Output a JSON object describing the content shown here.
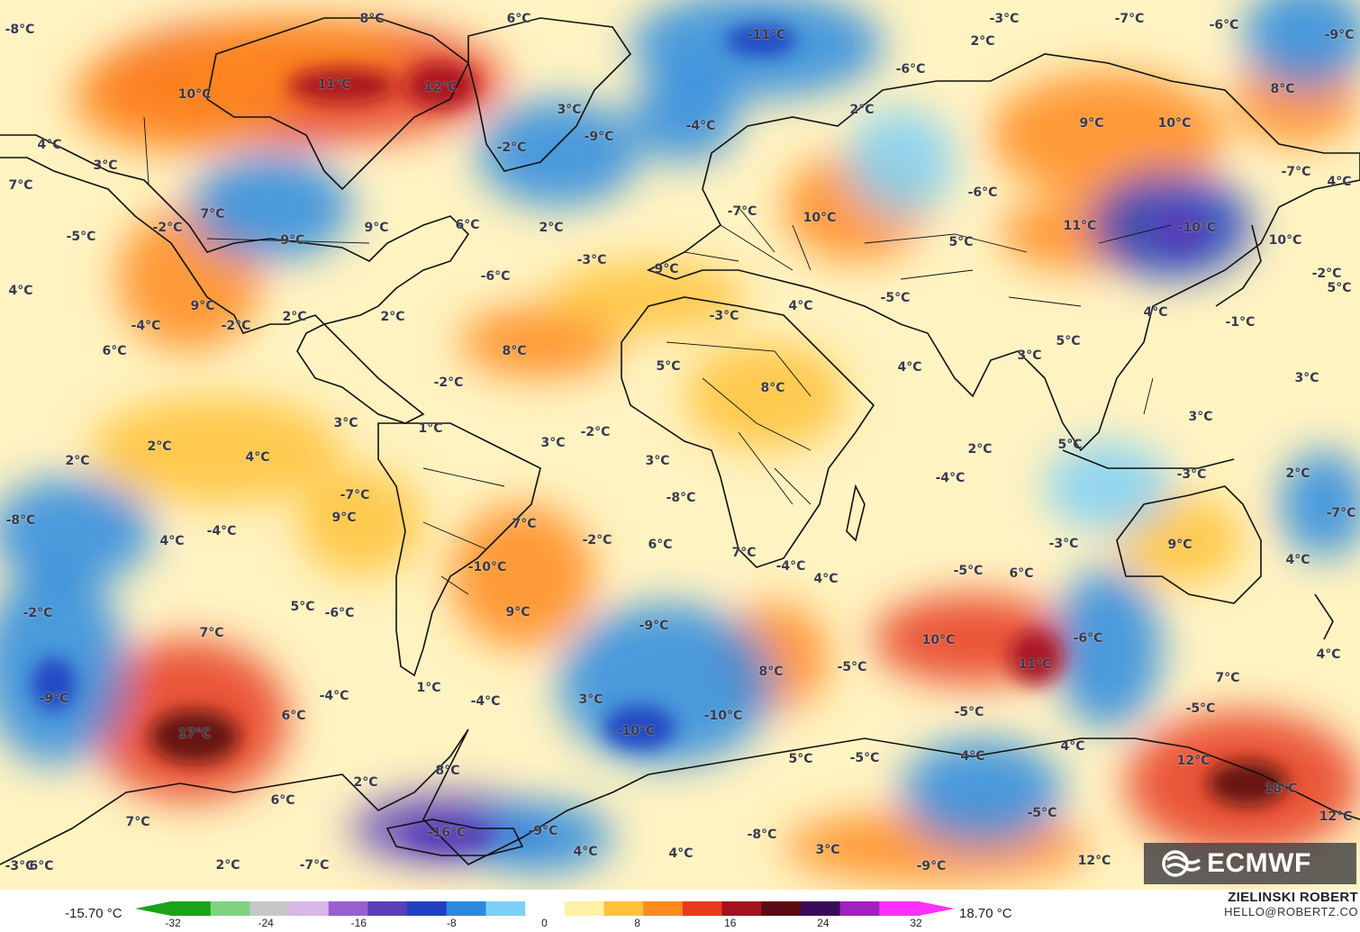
{
  "colors": {
    "ocean_base": "#fff3c2",
    "land_line": "#111111",
    "palette": [
      "#1aa31a",
      "#7fd37f",
      "#c7c7c7",
      "#d8b8e8",
      "#9a5fd0",
      "#5a3fb8",
      "#2040c0",
      "#2a8ae0",
      "#7fd0f7",
      "#ffffff",
      "#fff1a8",
      "#ffc23a",
      "#ff8a1e",
      "#e83a1e",
      "#a4121e",
      "#5a0a12",
      "#3a0a5a",
      "#a020c0",
      "#ff30ff"
    ]
  },
  "scale": {
    "min_label": "-15.70 °C",
    "max_label": "18.70 °C",
    "ticks": [
      "-32",
      "-24",
      "-16",
      "-8",
      "0",
      "8",
      "16",
      "24",
      "32"
    ]
  },
  "credit": {
    "name": "ZIELINSKI ROBERT",
    "email": "HELLO@ROBERTZ.CO"
  },
  "logo": {
    "text": "ECMWF"
  },
  "labels": [
    {
      "text": "-8°C"
    },
    {
      "text": "8°C"
    },
    {
      "text": "6°C"
    },
    {
      "text": "-11°C"
    },
    {
      "text": "-3°C"
    },
    {
      "text": "2°C"
    },
    {
      "text": "-7°C"
    },
    {
      "text": "-6°C"
    },
    {
      "text": "-9°C"
    },
    {
      "text": "10°C"
    },
    {
      "text": "11°C"
    },
    {
      "text": "12°C"
    },
    {
      "text": "-6°C"
    },
    {
      "text": "8°C"
    },
    {
      "text": "3°C"
    },
    {
      "text": "-9°C"
    },
    {
      "text": "-4°C"
    },
    {
      "text": "2°C"
    },
    {
      "text": "9°C"
    },
    {
      "text": "10°C"
    },
    {
      "text": "4°C"
    },
    {
      "text": "-2°C"
    },
    {
      "text": "3°C"
    },
    {
      "text": "7°C"
    },
    {
      "text": "-7°C"
    },
    {
      "text": "-6°C"
    },
    {
      "text": "-7°C"
    },
    {
      "text": "4°C"
    },
    {
      "text": "7°C"
    },
    {
      "text": "-9°C"
    },
    {
      "text": "9°C"
    },
    {
      "text": "6°C"
    },
    {
      "text": "2°C"
    },
    {
      "text": "10°C"
    },
    {
      "text": "11°C"
    },
    {
      "text": "-10°C"
    },
    {
      "text": "10°C"
    },
    {
      "text": "-2°C"
    },
    {
      "text": "-5°C"
    },
    {
      "text": "-3°C"
    },
    {
      "text": "-6°C"
    },
    {
      "text": "9°C"
    },
    {
      "text": "5°C"
    },
    {
      "text": "-2°C"
    },
    {
      "text": "4°C"
    },
    {
      "text": "9°C"
    },
    {
      "text": "2°C"
    },
    {
      "text": "2°C"
    },
    {
      "text": "-5°C"
    },
    {
      "text": "-3°C"
    },
    {
      "text": "4°C"
    },
    {
      "text": "5°C"
    },
    {
      "text": "-4°C"
    },
    {
      "text": "-2°C"
    },
    {
      "text": "-1°C"
    },
    {
      "text": "6°C"
    },
    {
      "text": "8°C"
    },
    {
      "text": "5°C"
    },
    {
      "text": "5°C"
    },
    {
      "text": "3°C"
    },
    {
      "text": "-2°C"
    },
    {
      "text": "4°C"
    },
    {
      "text": "8°C"
    },
    {
      "text": "4°C"
    },
    {
      "text": "3°C"
    },
    {
      "text": "1°C"
    },
    {
      "text": "-2°C"
    },
    {
      "text": "3°C"
    },
    {
      "text": "2°C"
    },
    {
      "text": "2°C"
    },
    {
      "text": "2°C"
    },
    {
      "text": "3°C"
    },
    {
      "text": "5°C"
    },
    {
      "text": "4°C"
    },
    {
      "text": "3°C"
    },
    {
      "text": "-4°C"
    },
    {
      "text": "-3°C"
    },
    {
      "text": "2°C"
    },
    {
      "text": "-8°C"
    },
    {
      "text": "-7°C"
    },
    {
      "text": "9°C"
    },
    {
      "text": "-8°C"
    },
    {
      "text": "-7°C"
    },
    {
      "text": "3°C"
    },
    {
      "text": "7°C"
    },
    {
      "text": "-4°C"
    },
    {
      "text": "4°C"
    },
    {
      "text": "-2°C"
    },
    {
      "text": "6°C"
    },
    {
      "text": "-10°C"
    },
    {
      "text": "7°C"
    },
    {
      "text": "-4°C"
    },
    {
      "text": "-3°C"
    },
    {
      "text": "9°C"
    },
    {
      "text": "4°C"
    },
    {
      "text": "4°C"
    },
    {
      "text": "5°C"
    },
    {
      "text": "-5°C"
    },
    {
      "text": "6°C"
    },
    {
      "text": "-2°C"
    },
    {
      "text": "-6°C"
    },
    {
      "text": "9°C"
    },
    {
      "text": "-9°C"
    },
    {
      "text": "-6°C"
    },
    {
      "text": "10°C"
    },
    {
      "text": "7°C"
    },
    {
      "text": "8°C"
    },
    {
      "text": "-5°C"
    },
    {
      "text": "11°C"
    },
    {
      "text": "4°C"
    },
    {
      "text": "-9°C"
    },
    {
      "text": "-4°C"
    },
    {
      "text": "1°C"
    },
    {
      "text": "-4°C"
    },
    {
      "text": "3°C"
    },
    {
      "text": "-10°C"
    },
    {
      "text": "-10°C"
    },
    {
      "text": "-5°C"
    },
    {
      "text": "-5°C"
    },
    {
      "text": "7°C"
    },
    {
      "text": "6°C"
    },
    {
      "text": "17°C"
    },
    {
      "text": "2°C"
    },
    {
      "text": "8°C"
    },
    {
      "text": "5°C"
    },
    {
      "text": "-5°C"
    },
    {
      "text": "4°C"
    },
    {
      "text": "4°C"
    },
    {
      "text": "12°C"
    },
    {
      "text": "6°C"
    },
    {
      "text": "18°C"
    },
    {
      "text": "7°C"
    },
    {
      "text": "-16°C"
    },
    {
      "text": "-9°C"
    },
    {
      "text": "-8°C"
    },
    {
      "text": "-5°C"
    },
    {
      "text": "4°C"
    },
    {
      "text": "4°C"
    },
    {
      "text": "3°C"
    },
    {
      "text": "6°C"
    },
    {
      "text": "2°C"
    },
    {
      "text": "-7°C"
    },
    {
      "text": "-9°C"
    },
    {
      "text": "12°C"
    },
    {
      "text": "12°C"
    },
    {
      "text": "-3°C"
    }
  ]
}
